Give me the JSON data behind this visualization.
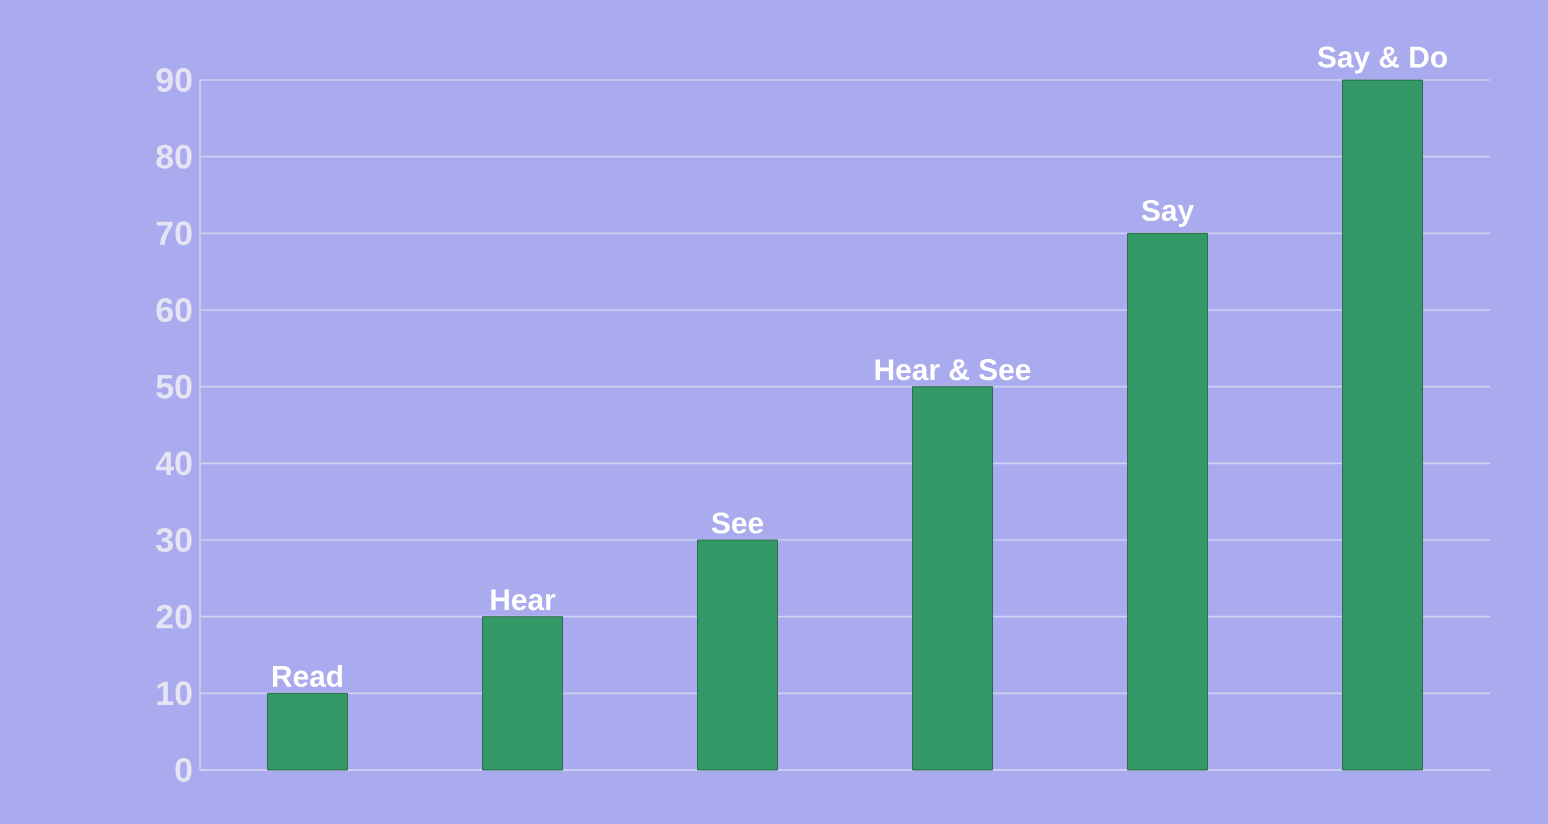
{
  "chart_data": {
    "type": "bar",
    "categories": [
      "Read",
      "Hear",
      "See",
      "Hear & See",
      "Say",
      "Say & Do"
    ],
    "values": [
      10,
      20,
      30,
      50,
      70,
      90
    ],
    "color": "#339966",
    "ylim": [
      0,
      90
    ],
    "yticks": [
      0,
      10,
      20,
      30,
      40,
      50,
      60,
      70,
      80,
      90
    ],
    "grid": "y"
  }
}
